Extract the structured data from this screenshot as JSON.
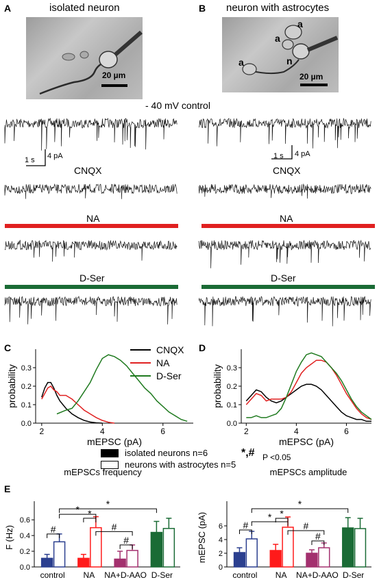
{
  "panels": {
    "A": {
      "letter": "A",
      "title": "isolated neuron",
      "scalebar": "20 µm"
    },
    "B": {
      "letter": "B",
      "title": "neuron with astrocytes",
      "scalebar": "20 µm",
      "cell_labels": [
        "a",
        "a",
        "a",
        "n"
      ]
    },
    "traces": {
      "header": "- 40 mV  control",
      "conditions": [
        "CNQX",
        "NA",
        "D-Ser"
      ],
      "scale_time": "1 s",
      "scale_amp": "4 pA",
      "colors": {
        "NA": "#e02020",
        "D-Ser": "#1a6b35"
      }
    },
    "C": {
      "letter": "C"
    },
    "D": {
      "letter": "D"
    },
    "E": {
      "letter": "E"
    }
  },
  "legend_C": {
    "items": [
      {
        "label": "CNQX",
        "color": "#000000"
      },
      {
        "label": "NA",
        "color": "#e02020"
      },
      {
        "label": "D-Ser",
        "color": "#1f7a1f"
      }
    ]
  },
  "legend_E": {
    "filled": "isolated neurons n=6",
    "open": "neurons with astrocytes n=5",
    "sig_symbol": "*,#",
    "sig_text": "P <0.05"
  },
  "chart_data": [
    {
      "id": "C",
      "type": "line",
      "xlabel": "mEPSC (pA)",
      "ylabel": "probability",
      "xlim": [
        1.8,
        7
      ],
      "ylim": [
        0,
        0.4
      ],
      "xticks": [
        2,
        4,
        6
      ],
      "yticks": [
        0.0,
        0.1,
        0.2,
        0.3
      ],
      "series": [
        {
          "name": "CNQX",
          "color": "#000000",
          "x": [
            2.0,
            2.1,
            2.2,
            2.3,
            2.4,
            2.5,
            2.6,
            2.8,
            3.0,
            3.2,
            3.4,
            3.6,
            3.8,
            4.0
          ],
          "y": [
            0.14,
            0.19,
            0.22,
            0.22,
            0.19,
            0.15,
            0.12,
            0.08,
            0.05,
            0.03,
            0.015,
            0.006,
            0.002,
            0.0
          ]
        },
        {
          "name": "NA",
          "color": "#e02020",
          "x": [
            2.0,
            2.1,
            2.2,
            2.3,
            2.4,
            2.5,
            2.6,
            2.8,
            3.0,
            3.2,
            3.4,
            3.6,
            3.8,
            4.0,
            4.2,
            4.4
          ],
          "y": [
            0.13,
            0.16,
            0.19,
            0.2,
            0.18,
            0.17,
            0.15,
            0.15,
            0.13,
            0.1,
            0.07,
            0.05,
            0.03,
            0.015,
            0.005,
            0.0
          ]
        },
        {
          "name": "D-Ser",
          "color": "#1f7a1f",
          "x": [
            2.5,
            2.8,
            3.0,
            3.2,
            3.4,
            3.6,
            3.8,
            4.0,
            4.2,
            4.4,
            4.6,
            4.8,
            5.0,
            5.2,
            5.4,
            5.6,
            5.8,
            6.0,
            6.2,
            6.4,
            6.6,
            6.8
          ],
          "y": [
            0.05,
            0.07,
            0.08,
            0.12,
            0.17,
            0.22,
            0.29,
            0.35,
            0.37,
            0.36,
            0.34,
            0.31,
            0.27,
            0.23,
            0.19,
            0.16,
            0.12,
            0.09,
            0.06,
            0.04,
            0.02,
            0.01
          ]
        }
      ]
    },
    {
      "id": "D",
      "type": "line",
      "xlabel": "mEPSC (pA)",
      "ylabel": "probability",
      "xlim": [
        1.8,
        7
      ],
      "ylim": [
        0,
        0.4
      ],
      "xticks": [
        2,
        4,
        6
      ],
      "yticks": [
        0.0,
        0.1,
        0.2,
        0.3
      ],
      "series": [
        {
          "name": "CNQX",
          "color": "#000000",
          "x": [
            2.0,
            2.2,
            2.4,
            2.6,
            2.8,
            3.0,
            3.2,
            3.4,
            3.6,
            3.8,
            4.0,
            4.2,
            4.4,
            4.6,
            4.8,
            5.0,
            5.2,
            5.4,
            5.6,
            5.8,
            6.0,
            6.2,
            6.4,
            6.6,
            6.8,
            7.0
          ],
          "y": [
            0.12,
            0.15,
            0.18,
            0.17,
            0.14,
            0.12,
            0.11,
            0.12,
            0.14,
            0.16,
            0.18,
            0.2,
            0.21,
            0.21,
            0.2,
            0.18,
            0.15,
            0.12,
            0.09,
            0.06,
            0.04,
            0.03,
            0.02,
            0.02,
            0.01,
            0.01
          ]
        },
        {
          "name": "NA",
          "color": "#e02020",
          "x": [
            2.0,
            2.2,
            2.4,
            2.6,
            2.8,
            3.0,
            3.2,
            3.4,
            3.6,
            3.8,
            4.0,
            4.2,
            4.4,
            4.6,
            4.8,
            5.0,
            5.2,
            5.4,
            5.6,
            5.8,
            6.0,
            6.2,
            6.4,
            6.6,
            6.8,
            7.0
          ],
          "y": [
            0.1,
            0.13,
            0.16,
            0.15,
            0.12,
            0.13,
            0.13,
            0.13,
            0.14,
            0.17,
            0.22,
            0.27,
            0.3,
            0.32,
            0.34,
            0.34,
            0.33,
            0.3,
            0.26,
            0.21,
            0.16,
            0.12,
            0.08,
            0.05,
            0.03,
            0.02
          ]
        },
        {
          "name": "D-Ser",
          "color": "#1f7a1f",
          "x": [
            2.0,
            2.2,
            2.4,
            2.6,
            2.8,
            3.0,
            3.2,
            3.4,
            3.6,
            3.8,
            4.0,
            4.2,
            4.4,
            4.6,
            4.8,
            5.0,
            5.2,
            5.4,
            5.6,
            5.8,
            6.0,
            6.2,
            6.4,
            6.6,
            6.8,
            7.0
          ],
          "y": [
            0.03,
            0.03,
            0.04,
            0.03,
            0.03,
            0.04,
            0.05,
            0.08,
            0.14,
            0.21,
            0.28,
            0.33,
            0.37,
            0.38,
            0.37,
            0.36,
            0.33,
            0.3,
            0.27,
            0.23,
            0.18,
            0.13,
            0.09,
            0.06,
            0.04,
            0.02
          ]
        }
      ]
    },
    {
      "id": "E-frequency",
      "type": "bar",
      "title": "mEPSCs frequency",
      "ylabel": "F (Hz)",
      "ylim": [
        0,
        0.75
      ],
      "yticks": [
        0.0,
        0.2,
        0.4,
        0.6
      ],
      "categories": [
        "control",
        "NA",
        "NA+D-AAO",
        "D-Ser"
      ],
      "colors": [
        "#2b3f8f",
        "#ff1a1a",
        "#a3306e",
        "#1a6b35"
      ],
      "series": [
        {
          "name": "isolated neurons n=6",
          "values": [
            0.11,
            0.11,
            0.1,
            0.44
          ],
          "errors": [
            0.05,
            0.05,
            0.1,
            0.14
          ]
        },
        {
          "name": "neurons with astrocytes n=5",
          "values": [
            0.32,
            0.5,
            0.21,
            0.49
          ],
          "errors": [
            0.1,
            0.14,
            0.07,
            0.13
          ]
        }
      ],
      "annotations": [
        "#",
        "*",
        "#",
        "*",
        "#",
        "*"
      ]
    },
    {
      "id": "E-amplitude",
      "type": "bar",
      "title": "mEPSCs amplitude",
      "ylabel": "mEPSC (pA)",
      "ylim": [
        0,
        8.6
      ],
      "yticks": [
        0,
        2,
        4,
        6
      ],
      "categories": [
        "control",
        "NA",
        "NA+D-AAO",
        "D-Ser"
      ],
      "colors": [
        "#2b3f8f",
        "#ff1a1a",
        "#a3306e",
        "#1a6b35"
      ],
      "series": [
        {
          "name": "isolated neurons n=6",
          "values": [
            2.1,
            2.4,
            2.0,
            5.7
          ],
          "errors": [
            0.7,
            0.9,
            0.5,
            1.5
          ]
        },
        {
          "name": "neurons with astrocytes n=5",
          "values": [
            4.1,
            5.8,
            2.8,
            5.6
          ],
          "errors": [
            1.1,
            1.5,
            0.7,
            1.5
          ]
        }
      ],
      "annotations": [
        "#",
        "*",
        "#",
        "*",
        "#",
        "*"
      ]
    }
  ]
}
